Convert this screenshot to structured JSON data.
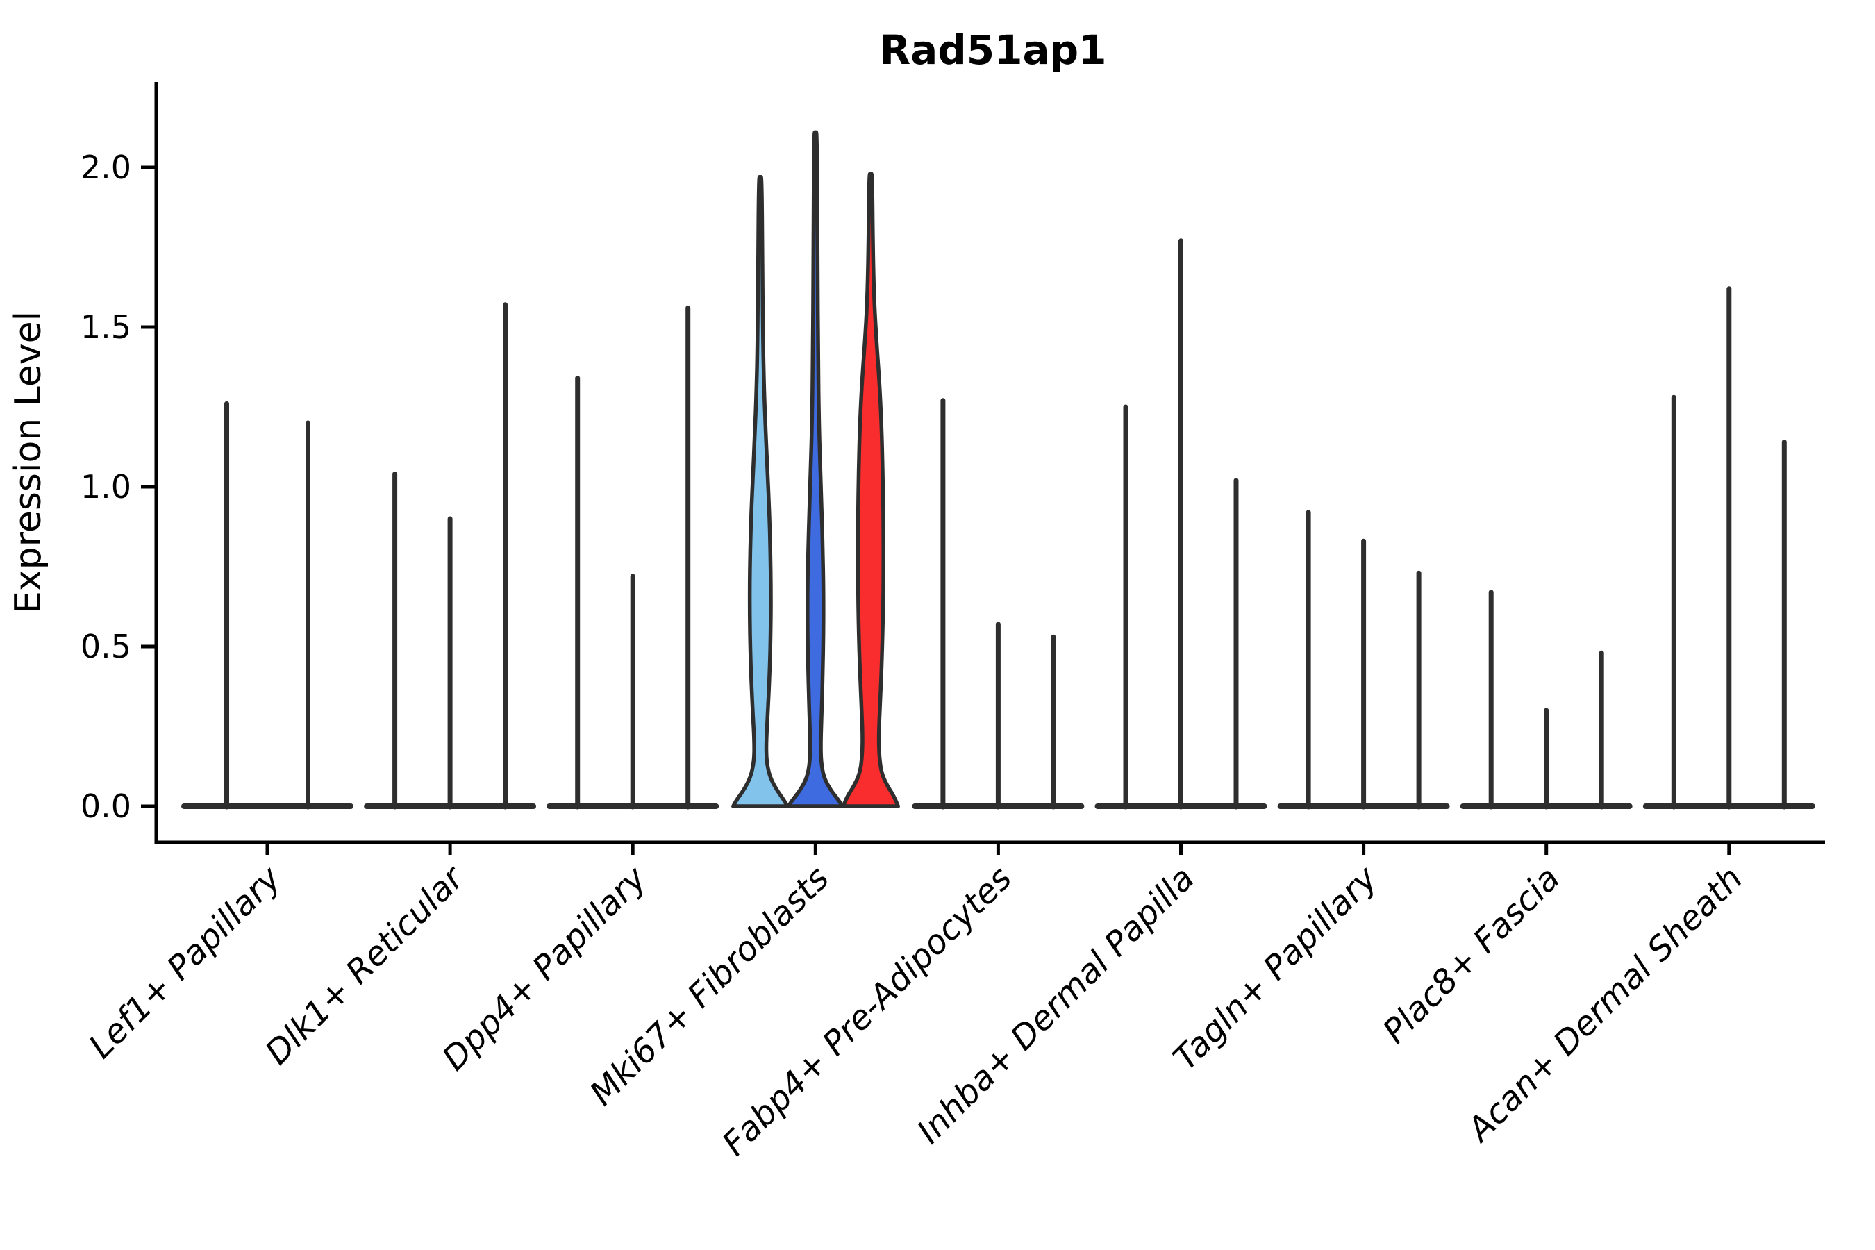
{
  "title": "Rad51ap1",
  "axis_colors": {
    "spine": "#000000",
    "mark": "#2e2e2e"
  },
  "chart_data": {
    "type": "violin",
    "title": "Rad51ap1",
    "xlabel": "",
    "ylabel": "Expression Level",
    "ylim": [
      0,
      2.27
    ],
    "yticks": [
      {
        "value": 0.0,
        "label": "0.0"
      },
      {
        "value": 0.5,
        "label": "0.5"
      },
      {
        "value": 1.0,
        "label": "1.0"
      },
      {
        "value": 1.5,
        "label": "1.5"
      },
      {
        "value": 2.0,
        "label": "2.0"
      }
    ],
    "grid": false,
    "legend": "none",
    "x_label_rotation": 45,
    "categories": [
      "Lef1+ Papillary",
      "Dlk1+ Reticular",
      "Dpp4+ Papillary",
      "Mki67+ Fibroblasts",
      "Fabp4+ Pre-Adipocytes",
      "Inhba+ Dermal Papilla",
      "Tagln+ Papillary",
      "Plac8+ Fascia",
      "Acan+ Dermal Sheath"
    ],
    "split_colors": [
      "#82C3EB",
      "#3E6BE0",
      "#F92D2D"
    ],
    "groups": [
      {
        "category": "Lef1+ Papillary",
        "violins": [
          {
            "style": "spike",
            "max": 1.26
          },
          {
            "style": "spike",
            "max": 1.2
          }
        ]
      },
      {
        "category": "Dlk1+ Reticular",
        "violins": [
          {
            "style": "spike",
            "max": 1.04
          },
          {
            "style": "spike",
            "max": 0.9
          },
          {
            "style": "spike",
            "max": 1.57
          }
        ]
      },
      {
        "category": "Dpp4+ Papillary",
        "violins": [
          {
            "style": "spike",
            "max": 1.34
          },
          {
            "style": "spike",
            "max": 0.72
          },
          {
            "style": "spike",
            "max": 1.56
          }
        ]
      },
      {
        "category": "Mki67+ Fibroblasts",
        "violins": [
          {
            "style": "body",
            "max": 1.97,
            "fill": "#82C3EB",
            "profile": [
              [
                0,
                39
              ],
              [
                0.02,
                34
              ],
              [
                0.05,
                24
              ],
              [
                0.09,
                14
              ],
              [
                0.14,
                9
              ],
              [
                0.2,
                8.5
              ],
              [
                0.3,
                11
              ],
              [
                0.42,
                13.5
              ],
              [
                0.55,
                15
              ],
              [
                0.68,
                15.3
              ],
              [
                0.8,
                14.5
              ],
              [
                0.92,
                13
              ],
              [
                1.04,
                10.5
              ],
              [
                1.16,
                8
              ],
              [
                1.3,
                5.5
              ],
              [
                1.45,
                4
              ],
              [
                1.65,
                3.2
              ],
              [
                1.97,
                2.2
              ]
            ]
          },
          {
            "style": "body",
            "max": 2.11,
            "fill": "#3E6BE0",
            "profile": [
              [
                0,
                39
              ],
              [
                0.02,
                33
              ],
              [
                0.05,
                22
              ],
              [
                0.09,
                12
              ],
              [
                0.14,
                8
              ],
              [
                0.2,
                7.5
              ],
              [
                0.3,
                9
              ],
              [
                0.42,
                10.5
              ],
              [
                0.55,
                11.5
              ],
              [
                0.68,
                11.5
              ],
              [
                0.8,
                10.5
              ],
              [
                0.92,
                9
              ],
              [
                1.05,
                7
              ],
              [
                1.2,
                5
              ],
              [
                1.4,
                3.8
              ],
              [
                1.7,
                3
              ],
              [
                2.11,
                2.2
              ]
            ]
          },
          {
            "style": "body",
            "max": 1.98,
            "fill": "#F92D2D",
            "profile": [
              [
                0,
                39.5
              ],
              [
                0.03,
                34
              ],
              [
                0.06,
                25
              ],
              [
                0.1,
                16
              ],
              [
                0.15,
                12.5
              ],
              [
                0.22,
                11.5
              ],
              [
                0.32,
                13.5
              ],
              [
                0.45,
                16
              ],
              [
                0.6,
                17.8
              ],
              [
                0.75,
                18.5
              ],
              [
                0.9,
                18.3
              ],
              [
                1.05,
                17.3
              ],
              [
                1.2,
                15.5
              ],
              [
                1.33,
                12.5
              ],
              [
                1.45,
                8.5
              ],
              [
                1.58,
                5
              ],
              [
                1.75,
                3.2
              ],
              [
                1.98,
                2.2
              ]
            ]
          }
        ]
      },
      {
        "category": "Fabp4+ Pre-Adipocytes",
        "violins": [
          {
            "style": "spike",
            "max": 1.27
          },
          {
            "style": "spike",
            "max": 0.57
          },
          {
            "style": "spike",
            "max": 0.53
          }
        ]
      },
      {
        "category": "Inhba+ Dermal Papilla",
        "violins": [
          {
            "style": "spike",
            "max": 1.25
          },
          {
            "style": "spike",
            "max": 1.77
          },
          {
            "style": "spike",
            "max": 1.02
          }
        ]
      },
      {
        "category": "Tagln+ Papillary",
        "violins": [
          {
            "style": "spike",
            "max": 0.92
          },
          {
            "style": "spike",
            "max": 0.83
          },
          {
            "style": "spike",
            "max": 0.73
          }
        ]
      },
      {
        "category": "Plac8+ Fascia",
        "violins": [
          {
            "style": "spike",
            "max": 0.67
          },
          {
            "style": "spike",
            "max": 0.3
          },
          {
            "style": "spike",
            "max": 0.48
          }
        ]
      },
      {
        "category": "Acan+ Dermal Sheath",
        "violins": [
          {
            "style": "spike",
            "max": 1.28
          },
          {
            "style": "spike",
            "max": 1.62
          },
          {
            "style": "spike",
            "max": 1.14
          }
        ]
      }
    ]
  }
}
